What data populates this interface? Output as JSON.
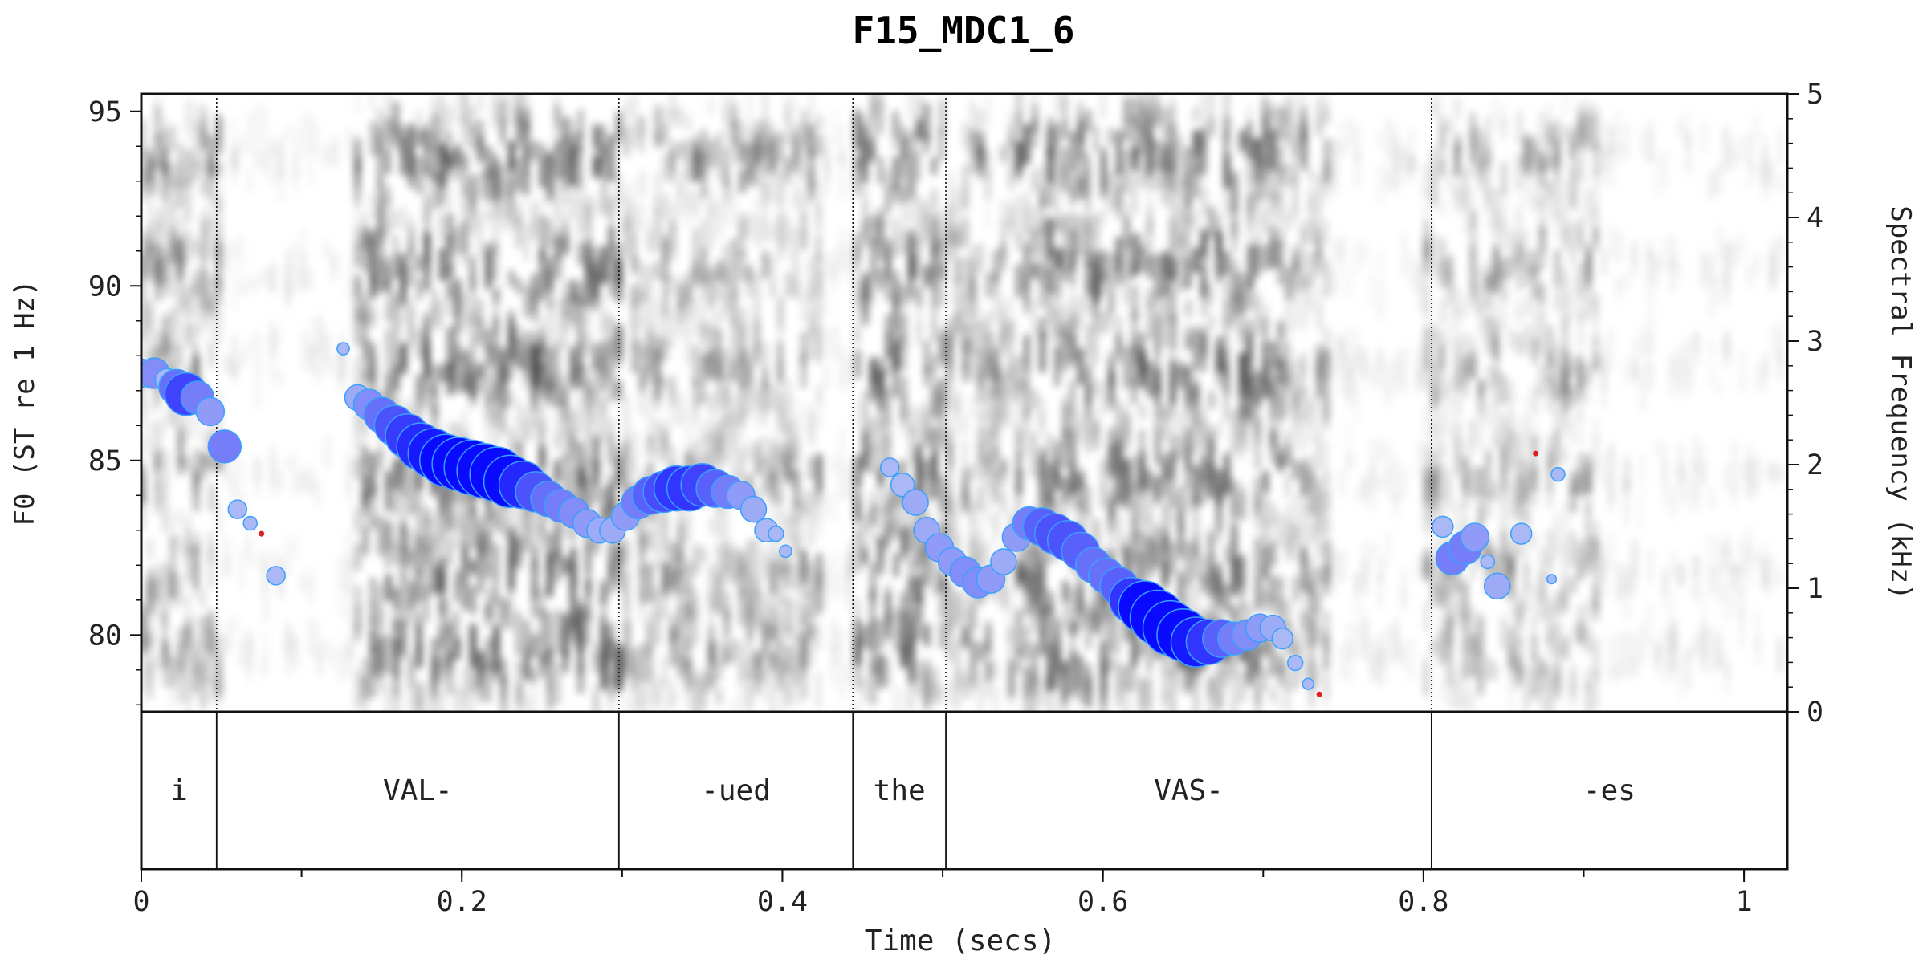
{
  "chart_data": {
    "type": "scatter",
    "title": "F15_MDC1_6",
    "xlabel": "Time (secs)",
    "ylabel": "F0 (ST re 1 Hz)",
    "ylabel_right": "Spectral Frequency (kHz)",
    "xlim": [
      0,
      1.027
    ],
    "ylim": [
      77.8,
      95.5
    ],
    "ylim_right": [
      0,
      5
    ],
    "x_ticks": [
      0,
      0.2,
      0.4,
      0.6,
      0.8,
      1
    ],
    "x_tick_labels": [
      "0",
      "0.2",
      "0.4",
      "0.6",
      "0.8",
      "1"
    ],
    "y_ticks": [
      80,
      85,
      90,
      95
    ],
    "y_tick_labels": [
      "80",
      "85",
      "90",
      "95"
    ],
    "y_right_ticks": [
      0,
      1,
      2,
      3,
      4,
      5
    ],
    "y_right_tick_labels": [
      "0",
      "1",
      "2",
      "3",
      "4",
      "5"
    ],
    "background": "grayscale spectrogram",
    "boundaries": [
      0.047,
      0.298,
      0.444,
      0.502,
      0.805
    ],
    "segments": [
      {
        "label": "i",
        "start": 0,
        "end": 0.047
      },
      {
        "label": "VAL-",
        "start": 0.047,
        "end": 0.298
      },
      {
        "label": "-ued",
        "start": 0.298,
        "end": 0.444
      },
      {
        "label": "the",
        "start": 0.444,
        "end": 0.502
      },
      {
        "label": "VAS-",
        "start": 0.502,
        "end": 0.805
      },
      {
        "label": "-es",
        "start": 0.805,
        "end": 1.027
      }
    ],
    "series": [
      {
        "values": [
          {
            "x": 0.0,
            "y": 87.5,
            "s": 0.45
          },
          {
            "x": 0.008,
            "y": 87.5,
            "s": 0.5
          },
          {
            "x": 0.016,
            "y": 87.3,
            "s": 0.35
          },
          {
            "x": 0.022,
            "y": 87.1,
            "s": 0.6
          },
          {
            "x": 0.028,
            "y": 86.9,
            "s": 0.75
          },
          {
            "x": 0.035,
            "y": 86.8,
            "s": 0.55
          },
          {
            "x": 0.043,
            "y": 86.4,
            "s": 0.45
          },
          {
            "x": 0.052,
            "y": 85.4,
            "s": 0.55
          },
          {
            "x": 0.06,
            "y": 83.6,
            "s": 0.25
          },
          {
            "x": 0.068,
            "y": 83.2,
            "s": 0.15
          },
          {
            "x": 0.084,
            "y": 81.7,
            "s": 0.25
          },
          {
            "x": 0.126,
            "y": 88.2,
            "s": 0.12
          },
          {
            "x": 0.135,
            "y": 86.8,
            "s": 0.4
          },
          {
            "x": 0.142,
            "y": 86.6,
            "s": 0.5
          },
          {
            "x": 0.15,
            "y": 86.3,
            "s": 0.6
          },
          {
            "x": 0.158,
            "y": 86.0,
            "s": 0.7
          },
          {
            "x": 0.166,
            "y": 85.7,
            "s": 0.78
          },
          {
            "x": 0.174,
            "y": 85.4,
            "s": 0.84
          },
          {
            "x": 0.182,
            "y": 85.2,
            "s": 0.9
          },
          {
            "x": 0.19,
            "y": 85.0,
            "s": 0.95
          },
          {
            "x": 0.198,
            "y": 84.9,
            "s": 0.97
          },
          {
            "x": 0.206,
            "y": 84.8,
            "s": 1.0
          },
          {
            "x": 0.214,
            "y": 84.7,
            "s": 1.0
          },
          {
            "x": 0.222,
            "y": 84.6,
            "s": 1.0
          },
          {
            "x": 0.23,
            "y": 84.4,
            "s": 0.95
          },
          {
            "x": 0.238,
            "y": 84.3,
            "s": 0.85
          },
          {
            "x": 0.246,
            "y": 84.1,
            "s": 0.7
          },
          {
            "x": 0.254,
            "y": 83.9,
            "s": 0.6
          },
          {
            "x": 0.262,
            "y": 83.7,
            "s": 0.55
          },
          {
            "x": 0.27,
            "y": 83.5,
            "s": 0.5
          },
          {
            "x": 0.278,
            "y": 83.2,
            "s": 0.45
          },
          {
            "x": 0.286,
            "y": 83.0,
            "s": 0.4
          },
          {
            "x": 0.294,
            "y": 83.0,
            "s": 0.4
          },
          {
            "x": 0.302,
            "y": 83.4,
            "s": 0.45
          },
          {
            "x": 0.31,
            "y": 83.8,
            "s": 0.55
          },
          {
            "x": 0.318,
            "y": 84.0,
            "s": 0.65
          },
          {
            "x": 0.326,
            "y": 84.1,
            "s": 0.72
          },
          {
            "x": 0.334,
            "y": 84.2,
            "s": 0.8
          },
          {
            "x": 0.342,
            "y": 84.2,
            "s": 0.8
          },
          {
            "x": 0.35,
            "y": 84.3,
            "s": 0.75
          },
          {
            "x": 0.358,
            "y": 84.2,
            "s": 0.65
          },
          {
            "x": 0.366,
            "y": 84.1,
            "s": 0.55
          },
          {
            "x": 0.374,
            "y": 84.0,
            "s": 0.45
          },
          {
            "x": 0.382,
            "y": 83.6,
            "s": 0.4
          },
          {
            "x": 0.39,
            "y": 83.0,
            "s": 0.35
          },
          {
            "x": 0.396,
            "y": 82.9,
            "s": 0.18
          },
          {
            "x": 0.402,
            "y": 82.4,
            "s": 0.12
          },
          {
            "x": 0.467,
            "y": 84.8,
            "s": 0.25
          },
          {
            "x": 0.475,
            "y": 84.3,
            "s": 0.35
          },
          {
            "x": 0.483,
            "y": 83.8,
            "s": 0.4
          },
          {
            "x": 0.49,
            "y": 83.0,
            "s": 0.4
          },
          {
            "x": 0.498,
            "y": 82.5,
            "s": 0.45
          },
          {
            "x": 0.506,
            "y": 82.1,
            "s": 0.45
          },
          {
            "x": 0.514,
            "y": 81.8,
            "s": 0.5
          },
          {
            "x": 0.522,
            "y": 81.5,
            "s": 0.5
          },
          {
            "x": 0.53,
            "y": 81.6,
            "s": 0.45
          },
          {
            "x": 0.538,
            "y": 82.1,
            "s": 0.4
          },
          {
            "x": 0.546,
            "y": 82.8,
            "s": 0.45
          },
          {
            "x": 0.554,
            "y": 83.2,
            "s": 0.55
          },
          {
            "x": 0.562,
            "y": 83.1,
            "s": 0.65
          },
          {
            "x": 0.57,
            "y": 82.9,
            "s": 0.7
          },
          {
            "x": 0.578,
            "y": 82.7,
            "s": 0.7
          },
          {
            "x": 0.586,
            "y": 82.4,
            "s": 0.65
          },
          {
            "x": 0.594,
            "y": 82.0,
            "s": 0.6
          },
          {
            "x": 0.602,
            "y": 81.7,
            "s": 0.6
          },
          {
            "x": 0.61,
            "y": 81.4,
            "s": 0.65
          },
          {
            "x": 0.618,
            "y": 81.0,
            "s": 0.8
          },
          {
            "x": 0.626,
            "y": 80.8,
            "s": 0.95
          },
          {
            "x": 0.634,
            "y": 80.5,
            "s": 1.0
          },
          {
            "x": 0.642,
            "y": 80.2,
            "s": 1.0
          },
          {
            "x": 0.65,
            "y": 80.0,
            "s": 0.95
          },
          {
            "x": 0.658,
            "y": 79.8,
            "s": 0.9
          },
          {
            "x": 0.666,
            "y": 79.8,
            "s": 0.8
          },
          {
            "x": 0.674,
            "y": 79.9,
            "s": 0.65
          },
          {
            "x": 0.682,
            "y": 79.9,
            "s": 0.55
          },
          {
            "x": 0.69,
            "y": 80.0,
            "s": 0.5
          },
          {
            "x": 0.698,
            "y": 80.2,
            "s": 0.45
          },
          {
            "x": 0.706,
            "y": 80.2,
            "s": 0.4
          },
          {
            "x": 0.712,
            "y": 79.9,
            "s": 0.3
          },
          {
            "x": 0.72,
            "y": 79.2,
            "s": 0.18
          },
          {
            "x": 0.728,
            "y": 78.6,
            "s": 0.1
          },
          {
            "x": 0.812,
            "y": 83.1,
            "s": 0.3
          },
          {
            "x": 0.818,
            "y": 82.2,
            "s": 0.55
          },
          {
            "x": 0.826,
            "y": 82.5,
            "s": 0.55
          },
          {
            "x": 0.832,
            "y": 82.8,
            "s": 0.45
          },
          {
            "x": 0.84,
            "y": 82.1,
            "s": 0.15
          },
          {
            "x": 0.846,
            "y": 81.4,
            "s": 0.4
          },
          {
            "x": 0.861,
            "y": 82.9,
            "s": 0.3
          },
          {
            "x": 0.884,
            "y": 84.6,
            "s": 0.15
          },
          {
            "x": 0.88,
            "y": 81.6,
            "s": 0.06
          }
        ]
      },
      {
        "values": [
          {
            "x": 0.075,
            "y": 82.9
          },
          {
            "x": 0.735,
            "y": 78.3
          },
          {
            "x": 0.87,
            "y": 85.2
          }
        ]
      }
    ]
  },
  "colors": {
    "point_strong": "#0a0aff",
    "point_weak": "#aab8f5",
    "point_stroke": "#3aa0ff",
    "unvoiced": "#e02020",
    "axis": "#111111"
  }
}
